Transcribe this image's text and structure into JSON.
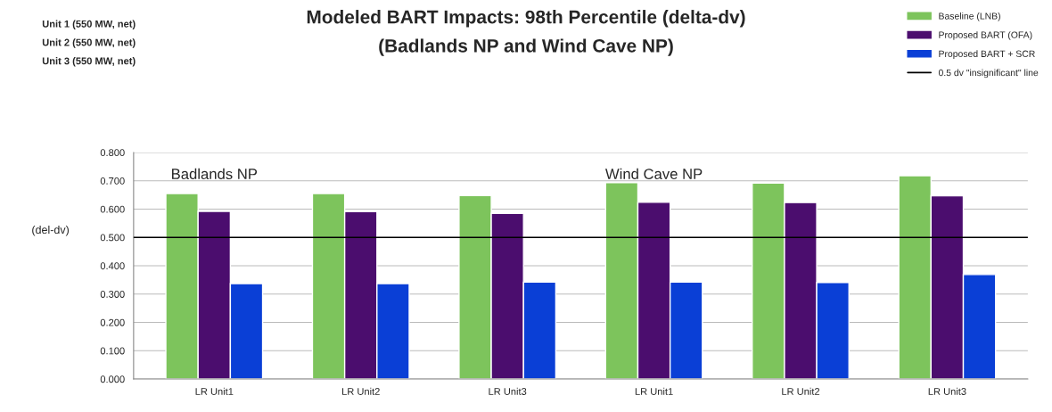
{
  "chart_data": {
    "type": "bar",
    "title": "Modeled BART Impacts: 98th Percentile (delta-dv)",
    "subtitle": "(Badlands NP and Wind Cave NP)",
    "ylabel": "(del-dv)",
    "categories": [
      "LR Unit1",
      "LR Unit2",
      "LR Unit3",
      "LR Unit1",
      "LR Unit2",
      "LR Unit3"
    ],
    "series": [
      {
        "name": "Baseline (LNB)",
        "color": "#7dc45c",
        "values": [
          0.655,
          0.655,
          0.648,
          0.693,
          0.692,
          0.718
        ]
      },
      {
        "name": "Proposed BART (OFA)",
        "color": "#4b0d6e",
        "values": [
          0.592,
          0.591,
          0.585,
          0.624,
          0.623,
          0.647
        ]
      },
      {
        "name": "Proposed BART + SCR",
        "color": "#0a3fd6",
        "values": [
          0.337,
          0.337,
          0.342,
          0.342,
          0.341,
          0.369
        ]
      }
    ],
    "ref_lines": [
      {
        "axis": "y",
        "value": 0.5,
        "label": "0.5 dv \"insignificant\" line",
        "color": "#000000",
        "line_style": "solid"
      }
    ],
    "annotations": [
      "Unit 1 (550 MW, net)",
      "Unit 2 (550 MW, net)",
      "Unit 3 (550 MW, net)",
      "Badlands NP",
      "Wind Cave NP"
    ],
    "ylim": [
      0,
      0.8
    ],
    "yticks": [
      {
        "value": 0,
        "label": "0.000"
      },
      {
        "value": 0.1,
        "label": "0.100"
      },
      {
        "value": 0.2,
        "label": "0.200"
      },
      {
        "value": 0.3,
        "label": "0.300"
      },
      {
        "value": 0.4,
        "label": "0.400"
      },
      {
        "value": 0.5,
        "label": "0.500"
      },
      {
        "value": 0.6,
        "label": "0.600"
      },
      {
        "value": 0.7,
        "label": "0.700"
      },
      {
        "value": 0.8,
        "label": "0.800"
      }
    ],
    "grid": "y",
    "legend": "top right"
  }
}
